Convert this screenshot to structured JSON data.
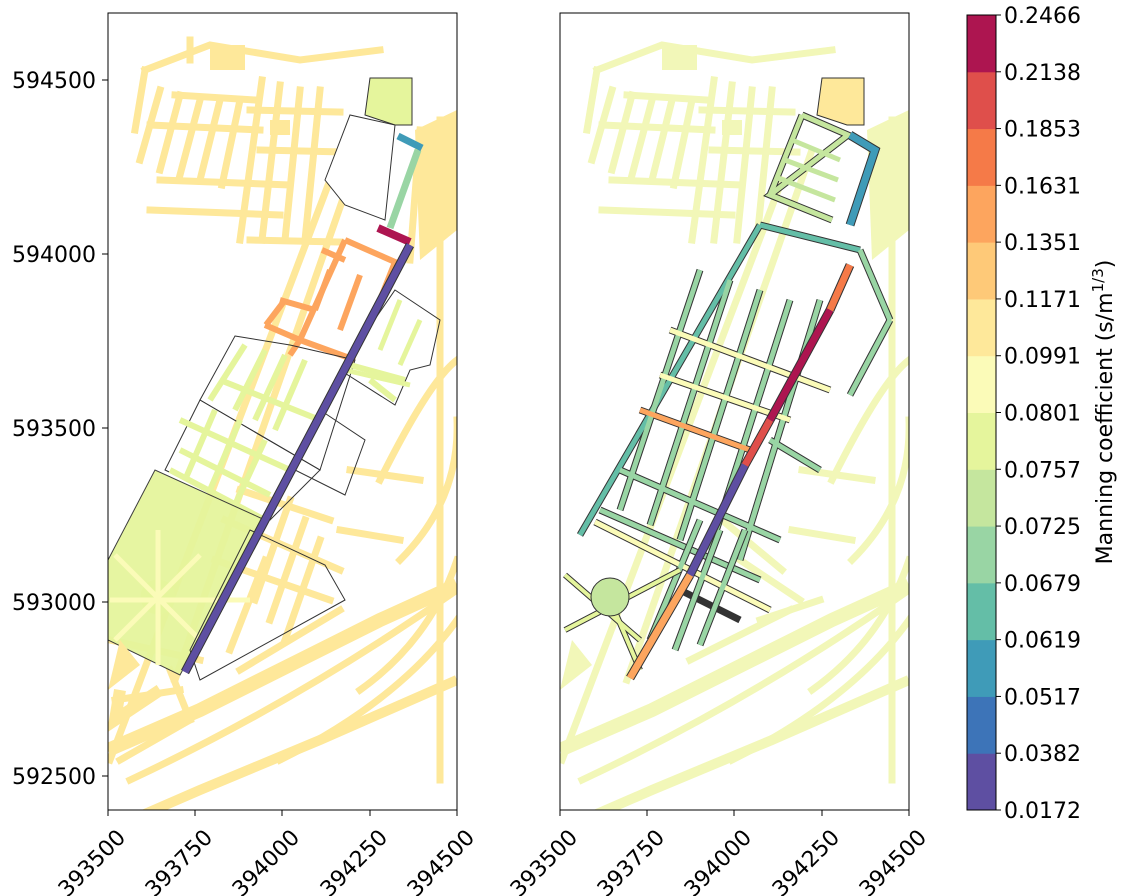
{
  "colorbar": {
    "label_main": "Manning coefficient (s/m",
    "label_sup": "1/3",
    "label_close": ")",
    "levels": [
      "0.0172",
      "0.0382",
      "0.0517",
      "0.0619",
      "0.0679",
      "0.0725",
      "0.0757",
      "0.0801",
      "0.0991",
      "0.1171",
      "0.1351",
      "0.1631",
      "0.1853",
      "0.2138",
      "0.2466"
    ],
    "colors": [
      "#5e4fa2",
      "#3d74b8",
      "#3f9bb8",
      "#64bea7",
      "#99d5a4",
      "#c5e69e",
      "#e5f59c",
      "#fbfbb8",
      "#fee89a",
      "#fec978",
      "#fda55e",
      "#f57a48",
      "#df4f4b",
      "#ad1550"
    ]
  },
  "axes": {
    "x_ticks": [
      "393500",
      "393750",
      "394000",
      "394250",
      "394500"
    ],
    "y_ticks": [
      "594500",
      "594000",
      "593500",
      "593000",
      "592500"
    ]
  },
  "chart_data": {
    "type": "map",
    "panels": 2,
    "x_range": [
      393500,
      394500
    ],
    "y_range": [
      592400,
      594700
    ],
    "x_ticks": [
      393500,
      393750,
      394000,
      394250,
      394500
    ],
    "y_ticks": [
      592500,
      593000,
      593500,
      594000,
      594500
    ],
    "colorbar_levels": [
      0.0172,
      0.0382,
      0.0517,
      0.0619,
      0.0679,
      0.0725,
      0.0757,
      0.0801,
      0.0991,
      0.1171,
      0.1351,
      0.1631,
      0.1853,
      0.2138,
      0.2466
    ],
    "colorbar_label": "Manning coefficient (s/m1/3)"
  }
}
